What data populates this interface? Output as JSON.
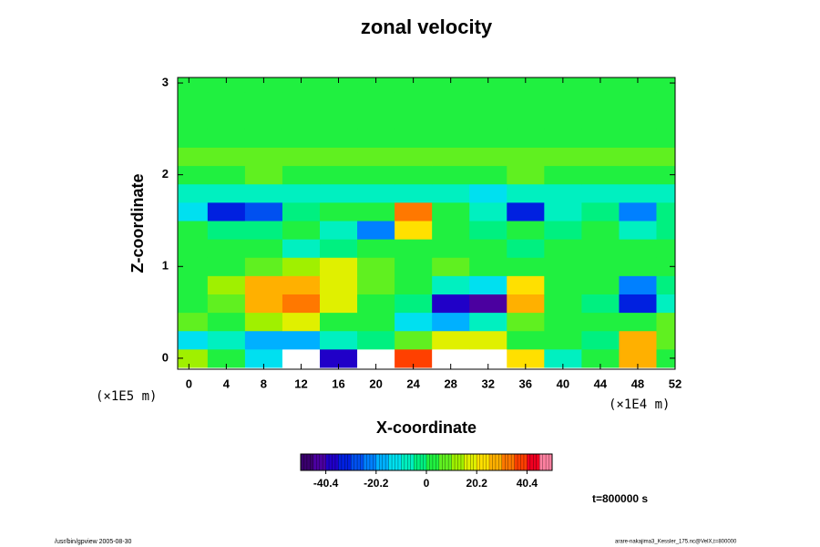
{
  "chart_data": {
    "type": "heatmap",
    "title": "zonal velocity",
    "xlabel": "X-coordinate",
    "ylabel": "Z-coordinate",
    "xunit": "(×1E4 m)",
    "yunit": "(×1E5 m)",
    "time_label": "t=800000 s",
    "footer_left": "/usr/bin/gpview 2005-08-30",
    "footer_right": "arare-nakajima3_Kessler_175.nc@VelX,t=800000",
    "x": [
      0,
      4,
      8,
      12,
      16,
      20,
      24,
      28,
      32,
      36,
      40,
      44,
      48,
      52
    ],
    "y": [
      0,
      0.2,
      0.4,
      0.6,
      0.8,
      1.0,
      1.2,
      1.4,
      1.6,
      1.8,
      2.0,
      2.2,
      2.4,
      2.6,
      2.8,
      3.0
    ],
    "values": [
      [
        15,
        5,
        -15,
        -55,
        -40,
        -55,
        40,
        55,
        55,
        25,
        -10,
        0,
        30,
        5
      ],
      [
        -15,
        -10,
        -20,
        -20,
        -10,
        -5,
        10,
        20,
        20,
        5,
        0,
        -5,
        30,
        10
      ],
      [
        10,
        5,
        15,
        20,
        5,
        0,
        -15,
        -20,
        -10,
        10,
        5,
        0,
        5,
        10
      ],
      [
        5,
        10,
        30,
        35,
        20,
        5,
        -5,
        -40,
        -45,
        30,
        0,
        -5,
        -35,
        -10
      ],
      [
        0,
        15,
        30,
        30,
        20,
        10,
        0,
        -10,
        -15,
        25,
        5,
        0,
        -25,
        -5
      ],
      [
        5,
        5,
        10,
        15,
        20,
        10,
        5,
        10,
        5,
        0,
        5,
        5,
        5,
        5
      ],
      [
        5,
        0,
        0,
        -10,
        -5,
        0,
        5,
        0,
        0,
        -5,
        0,
        5,
        0,
        5
      ],
      [
        0,
        -5,
        -5,
        0,
        -10,
        -25,
        25,
        0,
        -5,
        0,
        -5,
        0,
        -10,
        -5
      ],
      [
        -15,
        -35,
        -30,
        -5,
        0,
        5,
        35,
        5,
        -10,
        -35,
        -10,
        -5,
        -25,
        -5
      ],
      [
        -10,
        -10,
        -10,
        -10,
        -10,
        -10,
        -10,
        -10,
        -15,
        -10,
        -10,
        -10,
        -10,
        -10
      ],
      [
        5,
        5,
        10,
        5,
        5,
        5,
        5,
        5,
        5,
        10,
        5,
        5,
        5,
        5
      ],
      [
        10,
        10,
        10,
        8,
        8,
        8,
        8,
        8,
        8,
        8,
        8,
        8,
        8,
        8
      ],
      [
        3,
        3,
        3,
        3,
        3,
        3,
        3,
        3,
        3,
        3,
        3,
        3,
        3,
        3
      ],
      [
        3,
        3,
        3,
        3,
        3,
        3,
        3,
        3,
        3,
        3,
        3,
        3,
        3,
        3
      ],
      [
        3,
        3,
        3,
        3,
        3,
        3,
        3,
        3,
        3,
        3,
        3,
        3,
        3,
        3
      ],
      [
        3,
        3,
        3,
        3,
        3,
        3,
        3,
        3,
        3,
        3,
        3,
        3,
        3,
        3
      ]
    ],
    "xlim": [
      -1.2,
      52
    ],
    "ylim": [
      -0.12,
      3.06
    ],
    "xticks": [
      0,
      4,
      8,
      12,
      16,
      20,
      24,
      28,
      32,
      36,
      40,
      44,
      48,
      52
    ],
    "yticks": [
      0,
      1,
      2,
      3
    ],
    "clim": [
      -50.5,
      50.5
    ],
    "cticks": [
      -40.4,
      -20.2,
      0,
      20.2,
      40.4
    ],
    "colors": [
      "#3a006e",
      "#4b00a0",
      "#2000c8",
      "#0020e0",
      "#0050f0",
      "#0080ff",
      "#00b0ff",
      "#00e0f0",
      "#00f0c0",
      "#00f080",
      "#20f040",
      "#60f020",
      "#a0f000",
      "#e0f000",
      "#ffe000",
      "#ffb000",
      "#ff7800",
      "#ff4000",
      "#f00020",
      "#ff80a0"
    ],
    "out_of_range_color": "#ffffff"
  }
}
